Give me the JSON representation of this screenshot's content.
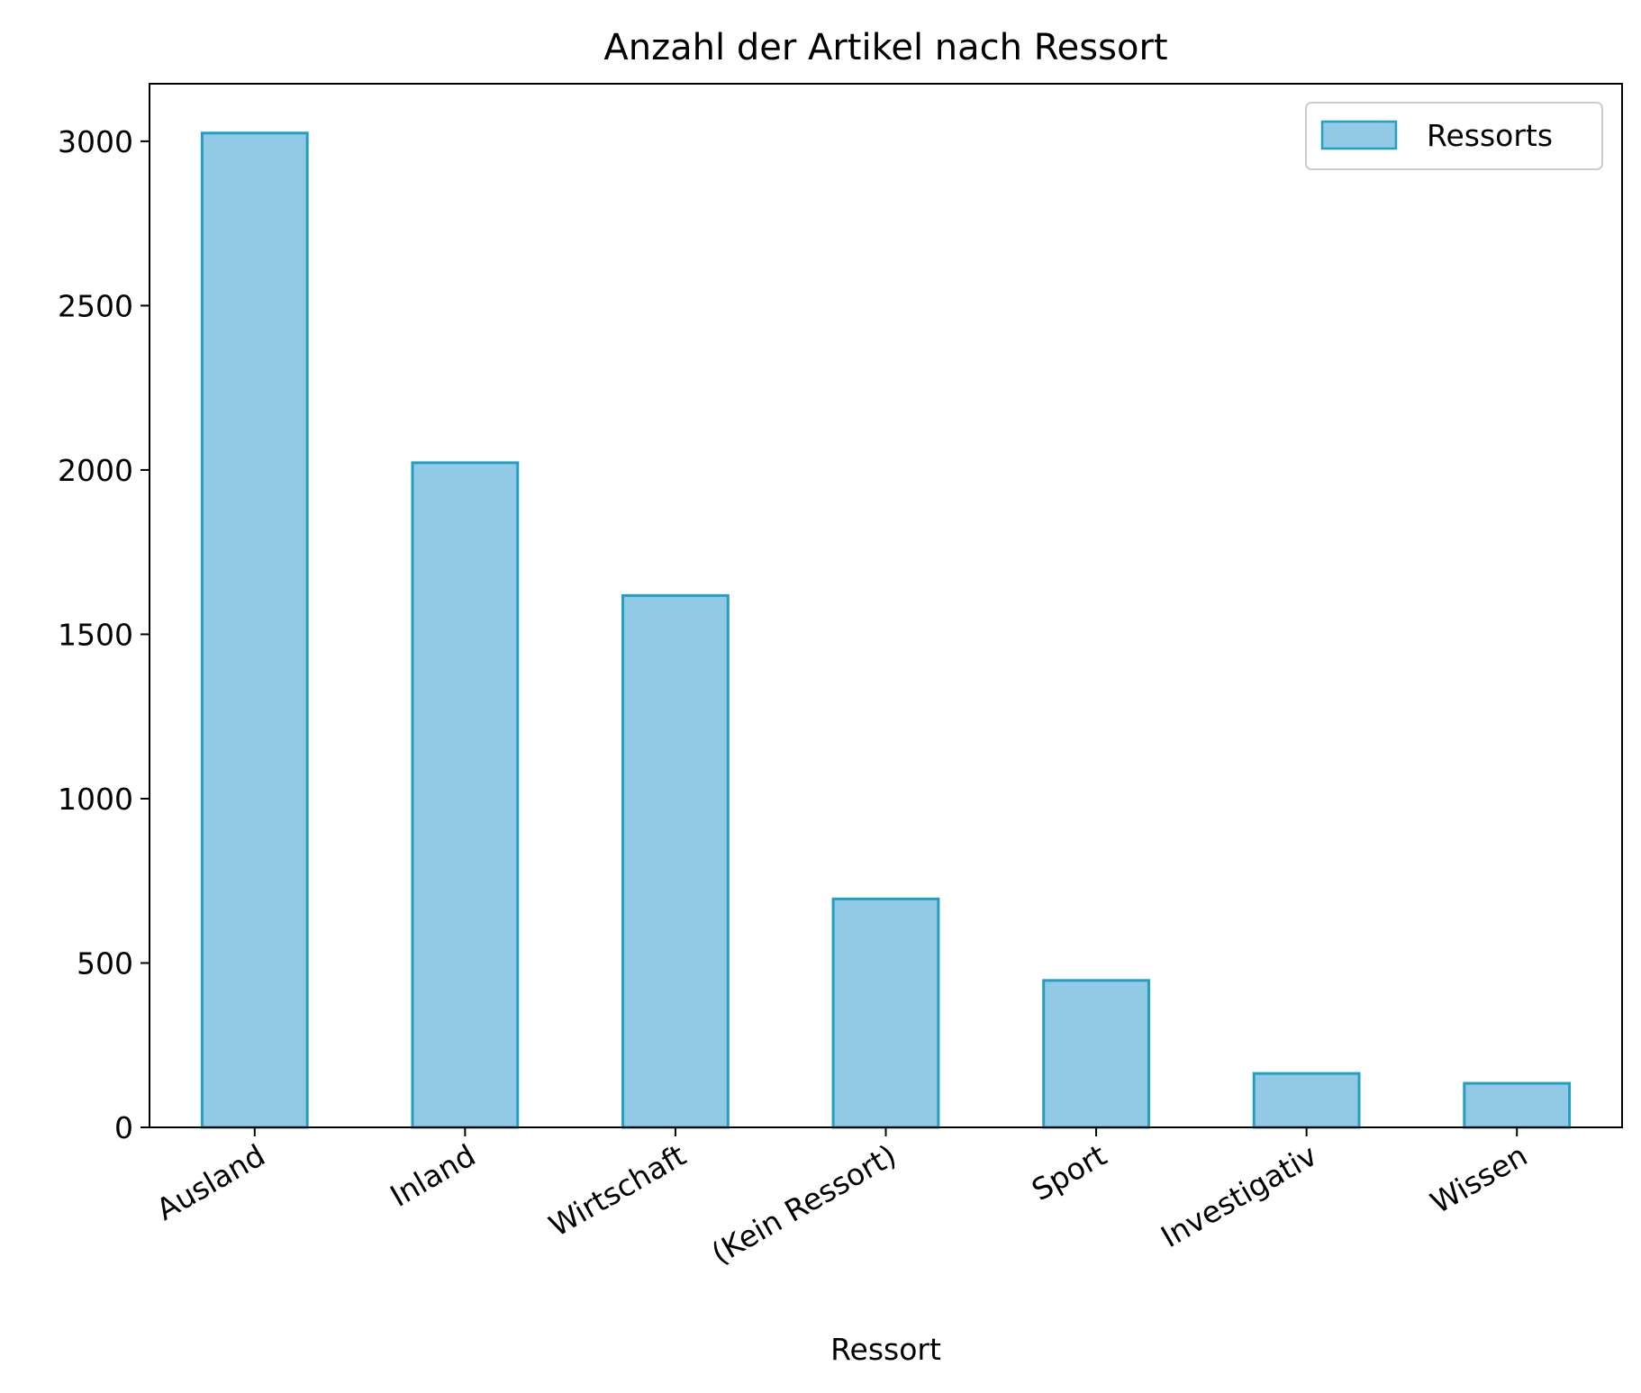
{
  "chart_data": {
    "type": "bar",
    "title": "Anzahl der Artikel nach Ressort",
    "xlabel": "Ressort",
    "ylabel": "",
    "categories": [
      "Ausland",
      "Inland",
      "Wirtschaft",
      "(Kein Ressort)",
      "Sport",
      "Investigativ",
      "Wissen"
    ],
    "series": [
      {
        "name": "Ressorts",
        "values": [
          3025,
          2022,
          1618,
          695,
          447,
          164,
          134
        ]
      }
    ],
    "yticks": [
      0,
      500,
      1000,
      1500,
      2000,
      2500,
      3000
    ],
    "ylim": [
      0,
      3175
    ],
    "grid": false,
    "legend_position": "top-right",
    "colors": {
      "bar_fill": "#92c9e5",
      "bar_edge": "#229fc2",
      "axes": "#000000"
    }
  }
}
